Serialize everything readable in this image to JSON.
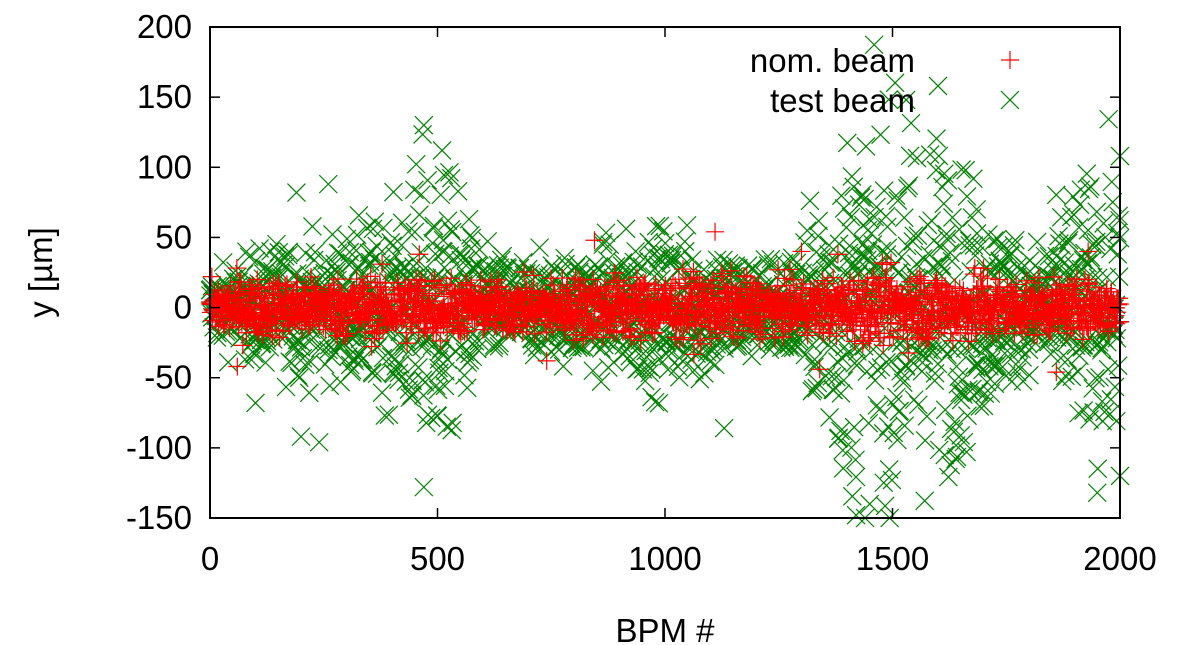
{
  "chart_data": {
    "type": "scatter",
    "xlabel": "BPM #",
    "ylabel": "y [µm]",
    "xlim": [
      0,
      2000
    ],
    "ylim": [
      -150,
      200
    ],
    "xticks": [
      0,
      500,
      1000,
      1500,
      2000
    ],
    "yticks": [
      -150,
      -100,
      -50,
      0,
      50,
      100,
      150,
      200
    ],
    "grid": false,
    "legend_position": "top-right",
    "n_points_per_series": 2000,
    "series": [
      {
        "name": "nom. beam",
        "marker": "plus",
        "color": "#ff0000",
        "envelope": [
          [
            0,
            18
          ],
          [
            250,
            18
          ],
          [
            450,
            22
          ],
          [
            600,
            16
          ],
          [
            850,
            20
          ],
          [
            1100,
            20
          ],
          [
            1300,
            16
          ],
          [
            1500,
            22
          ],
          [
            1700,
            22
          ],
          [
            1850,
            16
          ],
          [
            2000,
            16
          ]
        ],
        "annotated_points": [
          [
            60,
            -42
          ],
          [
            250,
            10
          ],
          [
            460,
            38
          ],
          [
            740,
            -38
          ],
          [
            845,
            48
          ],
          [
            1110,
            54
          ],
          [
            1300,
            40
          ],
          [
            1340,
            -44
          ],
          [
            1380,
            38
          ],
          [
            1450,
            -24
          ],
          [
            1560,
            22
          ],
          [
            1700,
            28
          ],
          [
            1860,
            -46
          ],
          [
            1930,
            40
          ],
          [
            2000,
            -10
          ]
        ]
      },
      {
        "name": "test beam",
        "marker": "cross",
        "color": "#008000",
        "envelope": [
          [
            0,
            22
          ],
          [
            150,
            40
          ],
          [
            300,
            45
          ],
          [
            420,
            60
          ],
          [
            470,
            100
          ],
          [
            520,
            85
          ],
          [
            600,
            35
          ],
          [
            750,
            30
          ],
          [
            900,
            45
          ],
          [
            1000,
            50
          ],
          [
            1100,
            45
          ],
          [
            1200,
            30
          ],
          [
            1300,
            40
          ],
          [
            1400,
            110
          ],
          [
            1500,
            120
          ],
          [
            1600,
            110
          ],
          [
            1700,
            70
          ],
          [
            1800,
            35
          ],
          [
            1900,
            75
          ],
          [
            2000,
            90
          ]
        ],
        "annotated_points": [
          [
            100,
            -68
          ],
          [
            190,
            82
          ],
          [
            200,
            -92
          ],
          [
            240,
            -96
          ],
          [
            260,
            88
          ],
          [
            470,
            130
          ],
          [
            470,
            -128
          ],
          [
            510,
            112
          ],
          [
            1130,
            -86
          ],
          [
            1420,
            -148
          ],
          [
            1450,
            -140
          ],
          [
            1530,
            148
          ],
          [
            1600,
            158
          ],
          [
            1950,
            -132
          ],
          [
            2000,
            108
          ],
          [
            2000,
            -120
          ]
        ]
      }
    ]
  }
}
